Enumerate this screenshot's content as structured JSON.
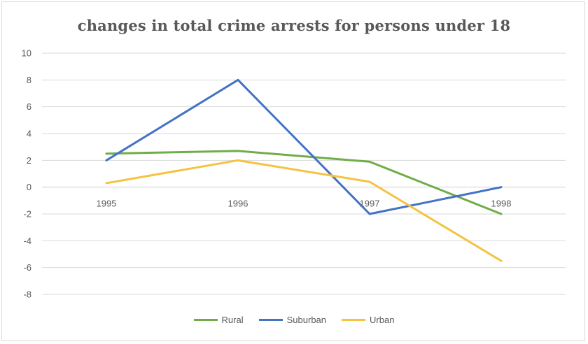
{
  "chart_data": {
    "type": "line",
    "title": "changes in total crime arrests for persons under 18",
    "xlabel": "",
    "ylabel": "",
    "categories": [
      "1995",
      "1996",
      "1997",
      "1998"
    ],
    "ylim": [
      -8,
      10
    ],
    "yticks": [
      10,
      8,
      6,
      4,
      2,
      0,
      -2,
      -4,
      -6,
      -8
    ],
    "grid": true,
    "legend_position": "bottom",
    "series": [
      {
        "name": "Rural",
        "color": "#70ad47",
        "values": [
          2.5,
          2.7,
          1.9,
          -2.0
        ]
      },
      {
        "name": "Suburban",
        "color": "#4472c4",
        "values": [
          2.0,
          8.0,
          -2.0,
          0.0
        ]
      },
      {
        "name": "Urban",
        "color": "#f5c242",
        "values": [
          0.3,
          2.0,
          0.4,
          -5.5
        ]
      }
    ]
  }
}
